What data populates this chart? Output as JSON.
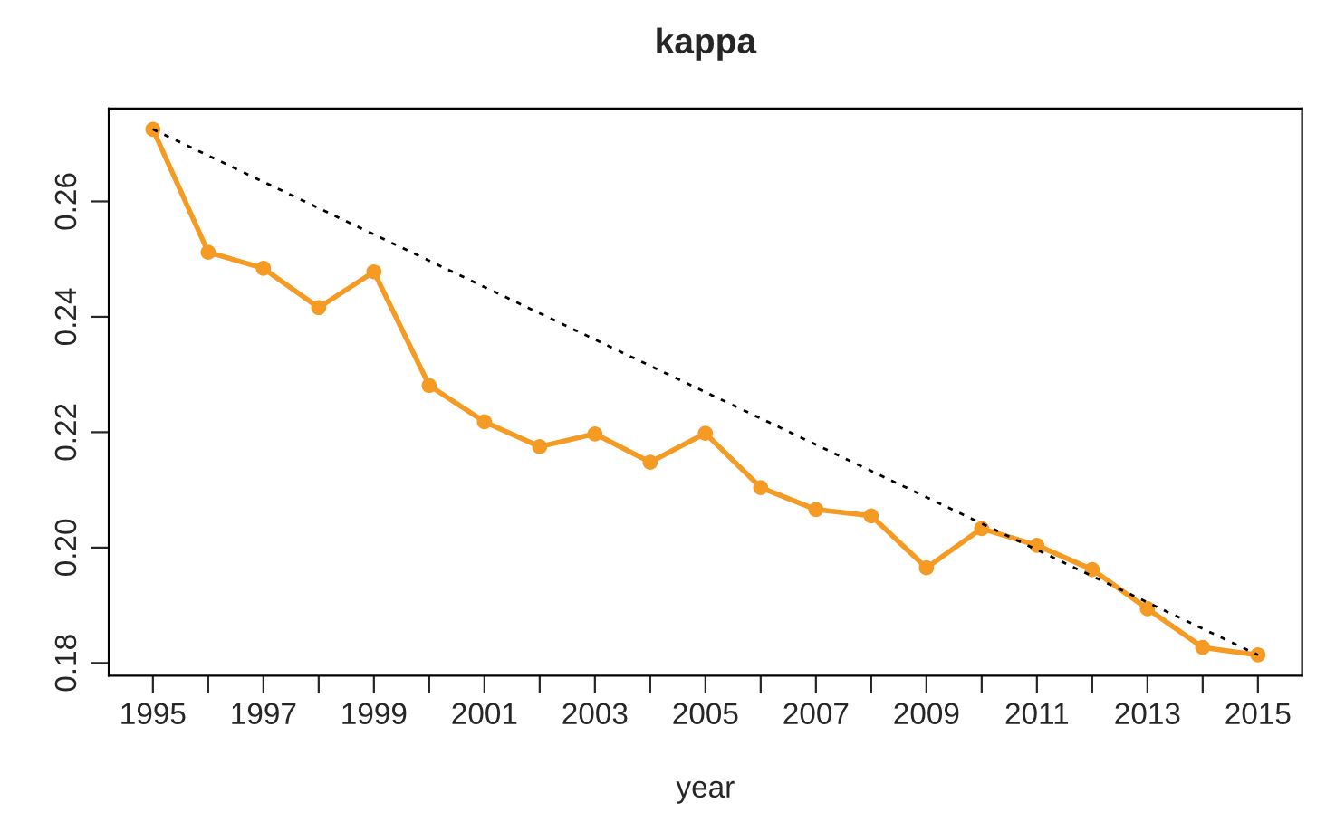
{
  "chart_data": {
    "type": "line",
    "title": "kappa",
    "xlabel": "year",
    "x": [
      1995,
      1996,
      1997,
      1998,
      1999,
      2000,
      2001,
      2002,
      2003,
      2004,
      2005,
      2006,
      2007,
      2008,
      2009,
      2010,
      2011,
      2012,
      2013,
      2014,
      2015
    ],
    "series": [
      {
        "color": "#f59a23",
        "marker": "circle",
        "line_style": "solid",
        "values": [
          0.2725,
          0.2512,
          0.2484,
          0.2416,
          0.2478,
          0.2281,
          0.2218,
          0.2175,
          0.2197,
          0.2148,
          0.2198,
          0.2104,
          0.2066,
          0.2055,
          0.1965,
          0.2033,
          0.2004,
          0.1962,
          0.1894,
          0.1827,
          0.1814
        ]
      },
      {
        "color": "#000000",
        "marker": "none",
        "line_style": "dotted",
        "x": [
          1995,
          2015
        ],
        "values": [
          0.2725,
          0.1814
        ]
      }
    ],
    "xlim": [
      1994.2,
      2015.8
    ],
    "ylim": [
      0.1778,
      0.2761
    ],
    "xticks": [
      1995,
      {
        "value": 1996,
        "label": null
      },
      1997,
      {
        "value": 1998,
        "label": null
      },
      1999,
      {
        "value": 2000,
        "label": null
      },
      2001,
      {
        "value": 2002,
        "label": null
      },
      2003,
      {
        "value": 2004,
        "label": null
      },
      2005,
      {
        "value": 2006,
        "label": null
      },
      2007,
      {
        "value": 2008,
        "label": null
      },
      2009,
      {
        "value": 2010,
        "label": null
      },
      2011,
      {
        "value": 2012,
        "label": null
      },
      2013,
      {
        "value": 2014,
        "label": null
      },
      2015
    ],
    "yticks": [
      {
        "value": 0.18,
        "label": "0.18"
      },
      {
        "value": 0.2,
        "label": "0.20"
      },
      {
        "value": 0.22,
        "label": "0.22"
      },
      {
        "value": 0.24,
        "label": "0.24"
      },
      {
        "value": 0.26,
        "label": "0.26"
      }
    ],
    "grid": false,
    "legend": false
  }
}
